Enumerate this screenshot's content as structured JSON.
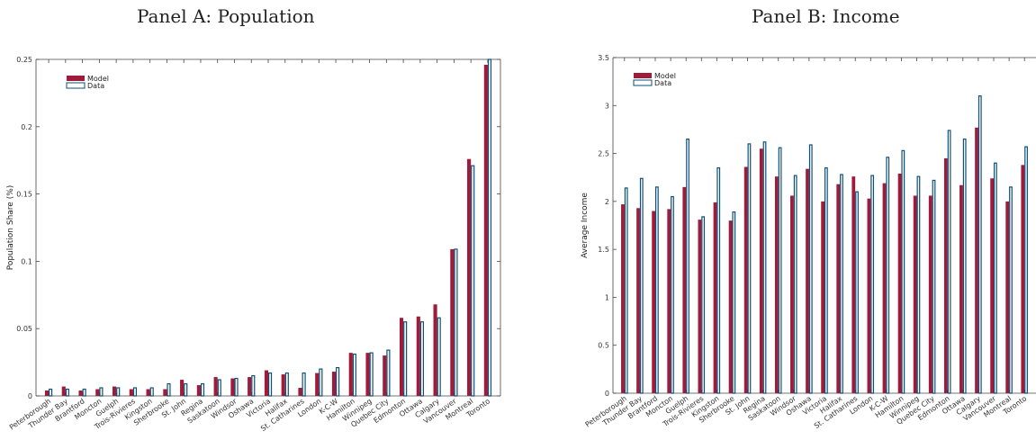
{
  "colors": {
    "model": "#a01a3a",
    "data_stroke": "#0b4f7a",
    "data_fill": "#ffffff",
    "axis": "#444444"
  },
  "chart_data": [
    {
      "type": "bar",
      "title": "Panel A: Population",
      "ylabel": "Population Share (%)",
      "xlabel": "",
      "ylim": [
        0,
        0.25
      ],
      "yticks": [
        0,
        0.05,
        0.1,
        0.15,
        0.2,
        0.25
      ],
      "legend": "top-left",
      "categories": [
        "Peterborough",
        "Thunder Bay",
        "Brantford",
        "Moncton",
        "Guelph",
        "Trois-Rivieres",
        "Kingston",
        "Sherbrooke",
        "St. John",
        "Regina",
        "Saskatoon",
        "Windsor",
        "Oshawa",
        "Victoria",
        "Halifax",
        "St. Catharines",
        "London",
        "K-C-W",
        "Hamilton",
        "Winnipeg",
        "Quebec City",
        "Edmonton",
        "Ottawa",
        "Calgary",
        "Vancouver",
        "Montreal",
        "Toronto"
      ],
      "series": [
        {
          "name": "Model",
          "values": [
            0.004,
            0.007,
            0.004,
            0.005,
            0.007,
            0.005,
            0.005,
            0.005,
            0.012,
            0.008,
            0.014,
            0.013,
            0.014,
            0.019,
            0.016,
            0.006,
            0.017,
            0.018,
            0.032,
            0.032,
            0.03,
            0.058,
            0.059,
            0.068,
            0.109,
            0.176,
            0.246
          ]
        },
        {
          "name": "Data",
          "values": [
            0.005,
            0.005,
            0.005,
            0.006,
            0.006,
            0.006,
            0.006,
            0.009,
            0.009,
            0.009,
            0.012,
            0.013,
            0.015,
            0.017,
            0.017,
            0.017,
            0.02,
            0.021,
            0.031,
            0.032,
            0.034,
            0.055,
            0.055,
            0.058,
            0.109,
            0.171,
            0.25
          ]
        }
      ]
    },
    {
      "type": "bar",
      "title": "Panel B: Income",
      "ylabel": "Average Income",
      "xlabel": "",
      "ylim": [
        0,
        3.5
      ],
      "yticks": [
        0,
        0.5,
        1,
        1.5,
        2,
        2.5,
        3,
        3.5
      ],
      "legend": "top-left",
      "categories": [
        "Peterborough",
        "Thunder Bay",
        "Brantford",
        "Moncton",
        "Guelph",
        "Trois-Rivieres",
        "Kingston",
        "Sherbrooke",
        "St. John",
        "Regina",
        "Saskatoon",
        "Windsor",
        "Oshawa",
        "Victoria",
        "Halifax",
        "St. Catharines",
        "London",
        "K-C-W",
        "Hamilton",
        "Winnipeg",
        "Quebec City",
        "Edmonton",
        "Ottawa",
        "Calgary",
        "Vancouver",
        "Montreal",
        "Toronto"
      ],
      "series": [
        {
          "name": "Model",
          "values": [
            1.97,
            1.93,
            1.9,
            1.92,
            2.15,
            1.81,
            1.99,
            1.8,
            2.36,
            2.55,
            2.26,
            2.06,
            2.34,
            2.0,
            2.18,
            2.26,
            2.03,
            2.19,
            2.29,
            2.06,
            2.06,
            2.45,
            2.17,
            2.77,
            2.24,
            2.0,
            2.38
          ]
        },
        {
          "name": "Data",
          "values": [
            2.14,
            2.24,
            2.15,
            2.05,
            2.65,
            1.84,
            2.35,
            1.89,
            2.6,
            2.62,
            2.56,
            2.27,
            2.59,
            2.35,
            2.28,
            2.1,
            2.27,
            2.46,
            2.53,
            2.26,
            2.22,
            2.74,
            2.65,
            3.1,
            2.4,
            2.15,
            2.57
          ]
        }
      ]
    }
  ]
}
